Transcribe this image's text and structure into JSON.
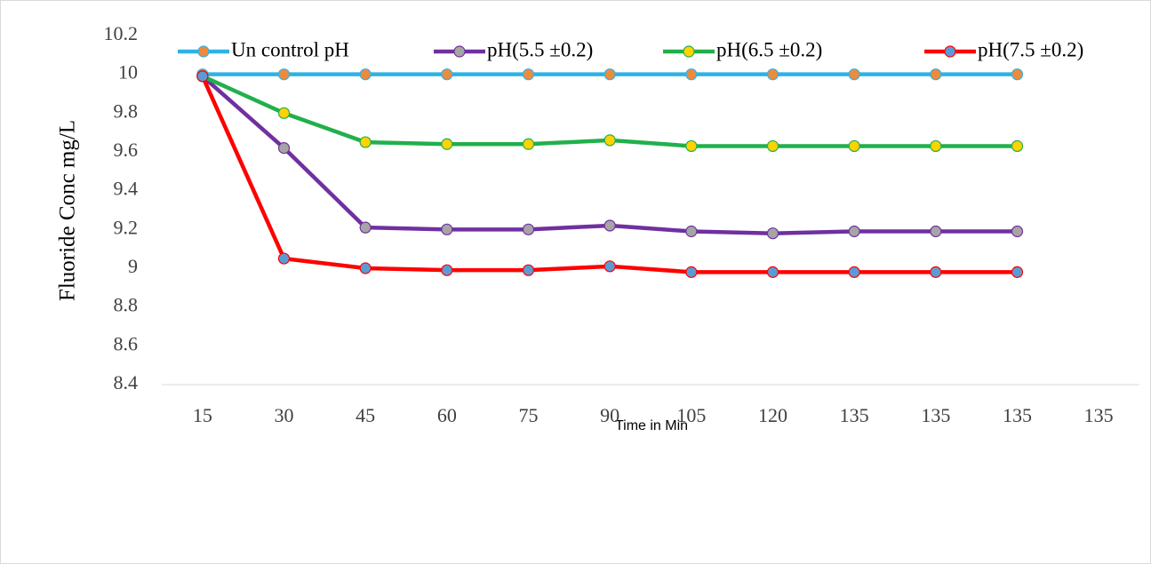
{
  "chart_data": {
    "type": "line",
    "x_label": "Time in Min",
    "y_label": "Fluoride Conc mg/L",
    "categories": [
      "15",
      "30",
      "45",
      "60",
      "75",
      "90",
      "105",
      "120",
      "135",
      "135",
      "135",
      "135"
    ],
    "series": [
      {
        "name": "Un control pH",
        "color": "#2eb2e6",
        "marker_color": "#ed8b3c",
        "values": [
          10,
          10,
          10,
          10,
          10,
          10,
          10,
          10,
          10,
          10,
          10,
          null
        ]
      },
      {
        "name": "pH(5.5 ±0.2)",
        "color": "#7030a0",
        "marker_color": "#a5a5a5",
        "values": [
          9.99,
          9.62,
          9.21,
          9.2,
          9.2,
          9.22,
          9.19,
          9.18,
          9.19,
          9.19,
          9.19,
          null
        ]
      },
      {
        "name": "pH(6.5 ±0.2)",
        "color": "#21b04b",
        "marker_color": "#ffd200",
        "values": [
          9.99,
          9.8,
          9.65,
          9.64,
          9.64,
          9.66,
          9.63,
          9.63,
          9.63,
          9.63,
          9.63,
          null
        ]
      },
      {
        "name": "pH(7.5 ±0.2)",
        "color": "#ff0000",
        "marker_color": "#5b9bd5",
        "values": [
          9.99,
          9.05,
          9.0,
          8.99,
          8.99,
          9.01,
          8.98,
          8.98,
          8.98,
          8.98,
          8.98,
          null
        ]
      }
    ],
    "ylim": [
      8.4,
      10.2
    ],
    "yticks": [
      8.4,
      8.6,
      8.8,
      9,
      9.2,
      9.4,
      9.6,
      9.8,
      10,
      10.2
    ],
    "grid": false,
    "legend": "top"
  }
}
